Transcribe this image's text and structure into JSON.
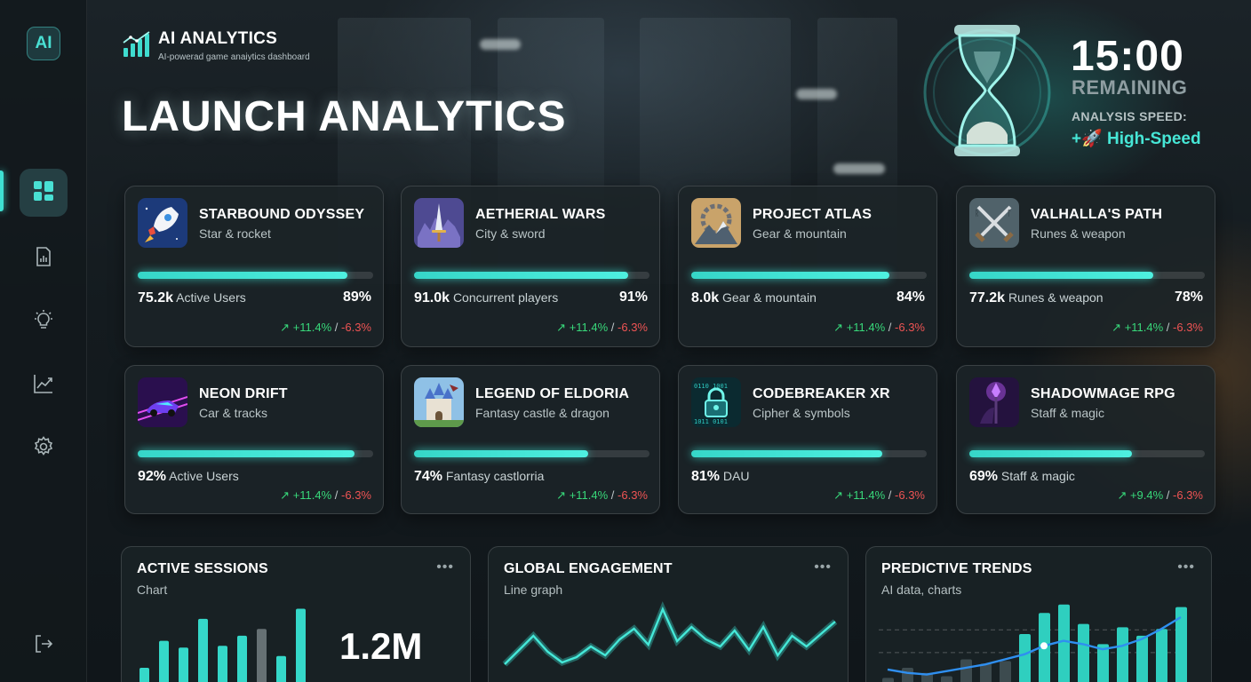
{
  "sidebar": {
    "logo": "AI",
    "items": [
      {
        "name": "dashboard",
        "icon": "grid-icon",
        "active": true
      },
      {
        "name": "reports",
        "icon": "report-icon",
        "active": false
      },
      {
        "name": "insights",
        "icon": "lightbulb-icon",
        "active": false
      },
      {
        "name": "trends",
        "icon": "trend-icon",
        "active": false
      },
      {
        "name": "settings",
        "icon": "gear-icon",
        "active": false
      }
    ],
    "logout_icon": "logout-icon"
  },
  "brand": {
    "title": "AI ANALYTICS",
    "subtitle": "AI-powerad game anaiytics dashboard",
    "icon": "bar-chart-logo-icon"
  },
  "heading": "LAUNCH ANALYTICS",
  "timer": {
    "value": "15:00",
    "label": "REMAINING",
    "speed_label": "ANALYSIS SPEED:",
    "speed_value": "+🚀 High-Speed",
    "icon": "hourglass-icon"
  },
  "games": [
    {
      "title": "STARBOUND ODYSSEY",
      "subtitle": "Star & rocket",
      "value": "75.2k",
      "metric_label": "Active Users",
      "percent_text": "89%",
      "progress": 0.89,
      "delta_up": "+11.4%",
      "delta_down": "-6.3%",
      "icon": "rocket-icon"
    },
    {
      "title": "AETHERIAL WARS",
      "subtitle": "City & sword",
      "value": "91.0k",
      "metric_label": "Concurrent players",
      "percent_text": "91%",
      "progress": 0.91,
      "delta_up": "+11.4%",
      "delta_down": "-6.3%",
      "icon": "sword-icon"
    },
    {
      "title": "PROJECT ATLAS",
      "subtitle": "Gear & mountain",
      "value": "8.0k",
      "metric_label": "Gear & mountain",
      "percent_text": "84%",
      "progress": 0.84,
      "delta_up": "+11.4%",
      "delta_down": "-6.3%",
      "icon": "gear-mountain-icon"
    },
    {
      "title": "VALHALLA'S PATH",
      "subtitle": "Runes & weapon",
      "value": "77.2k",
      "metric_label": "Runes & weapon",
      "percent_text": "78%",
      "progress": 0.78,
      "delta_up": "+11.4%",
      "delta_down": "-6.3%",
      "icon": "crossed-swords-icon"
    },
    {
      "title": "NEON DRIFT",
      "subtitle": "Car & tracks",
      "value": "92%",
      "metric_label": "Active Users",
      "percent_text": "",
      "progress": 0.92,
      "delta_up": "+11.4%",
      "delta_down": "-6.3%",
      "icon": "car-icon"
    },
    {
      "title": "LEGEND OF ELDORIA",
      "subtitle": "Fantasy castle & dragon",
      "value": "74%",
      "metric_label": "Fantasy castlorria",
      "percent_text": "",
      "progress": 0.74,
      "delta_up": "+11.4%",
      "delta_down": "-6.3%",
      "icon": "castle-icon"
    },
    {
      "title": "CODEBREAKER XR",
      "subtitle": "Cipher & symbols",
      "value": "81%",
      "metric_label": "DAU",
      "percent_text": "",
      "progress": 0.81,
      "delta_up": "+11.4%",
      "delta_down": "-6.3%",
      "icon": "lock-icon"
    },
    {
      "title": "SHADOWMAGE RPG",
      "subtitle": "Staff & magic",
      "value": "69%",
      "metric_label": "Staff & magic",
      "percent_text": "",
      "progress": 0.69,
      "delta_up": "+9.4%",
      "delta_down": "-6.3%",
      "icon": "staff-icon"
    }
  ],
  "panels": {
    "sessions": {
      "title": "ACTIVE SESSIONS",
      "subtitle": "Chart",
      "big_value": "1.2M",
      "more": "•••"
    },
    "engagement": {
      "title": "GLOBAL ENGAGEMENT",
      "subtitle": "Line graph",
      "more": "•••"
    },
    "trends": {
      "title": "PREDICTIVE TRENDS",
      "subtitle": "AI data, charts",
      "more": "•••"
    }
  },
  "chart_data": [
    {
      "type": "bar",
      "name": "sessions",
      "values": [
        20,
        52,
        44,
        78,
        46,
        58,
        66,
        34,
        90
      ],
      "highlight": [
        false,
        false,
        false,
        false,
        false,
        false,
        true,
        false,
        false
      ]
    },
    {
      "type": "line",
      "name": "engagement",
      "values": [
        30,
        46,
        62,
        44,
        32,
        38,
        50,
        40,
        58,
        70,
        52,
        92,
        56,
        72,
        58,
        50,
        68,
        46,
        72,
        40,
        62,
        50,
        64,
        78
      ]
    },
    {
      "type": "bar",
      "name": "trends",
      "bars": [
        8,
        20,
        14,
        10,
        30,
        25,
        28,
        60,
        85,
        95,
        72,
        48,
        68,
        58,
        66,
        92
      ],
      "line": [
        18,
        14,
        12,
        16,
        20,
        24,
        30,
        36,
        46,
        52,
        48,
        42,
        46,
        54,
        66,
        80
      ]
    }
  ]
}
